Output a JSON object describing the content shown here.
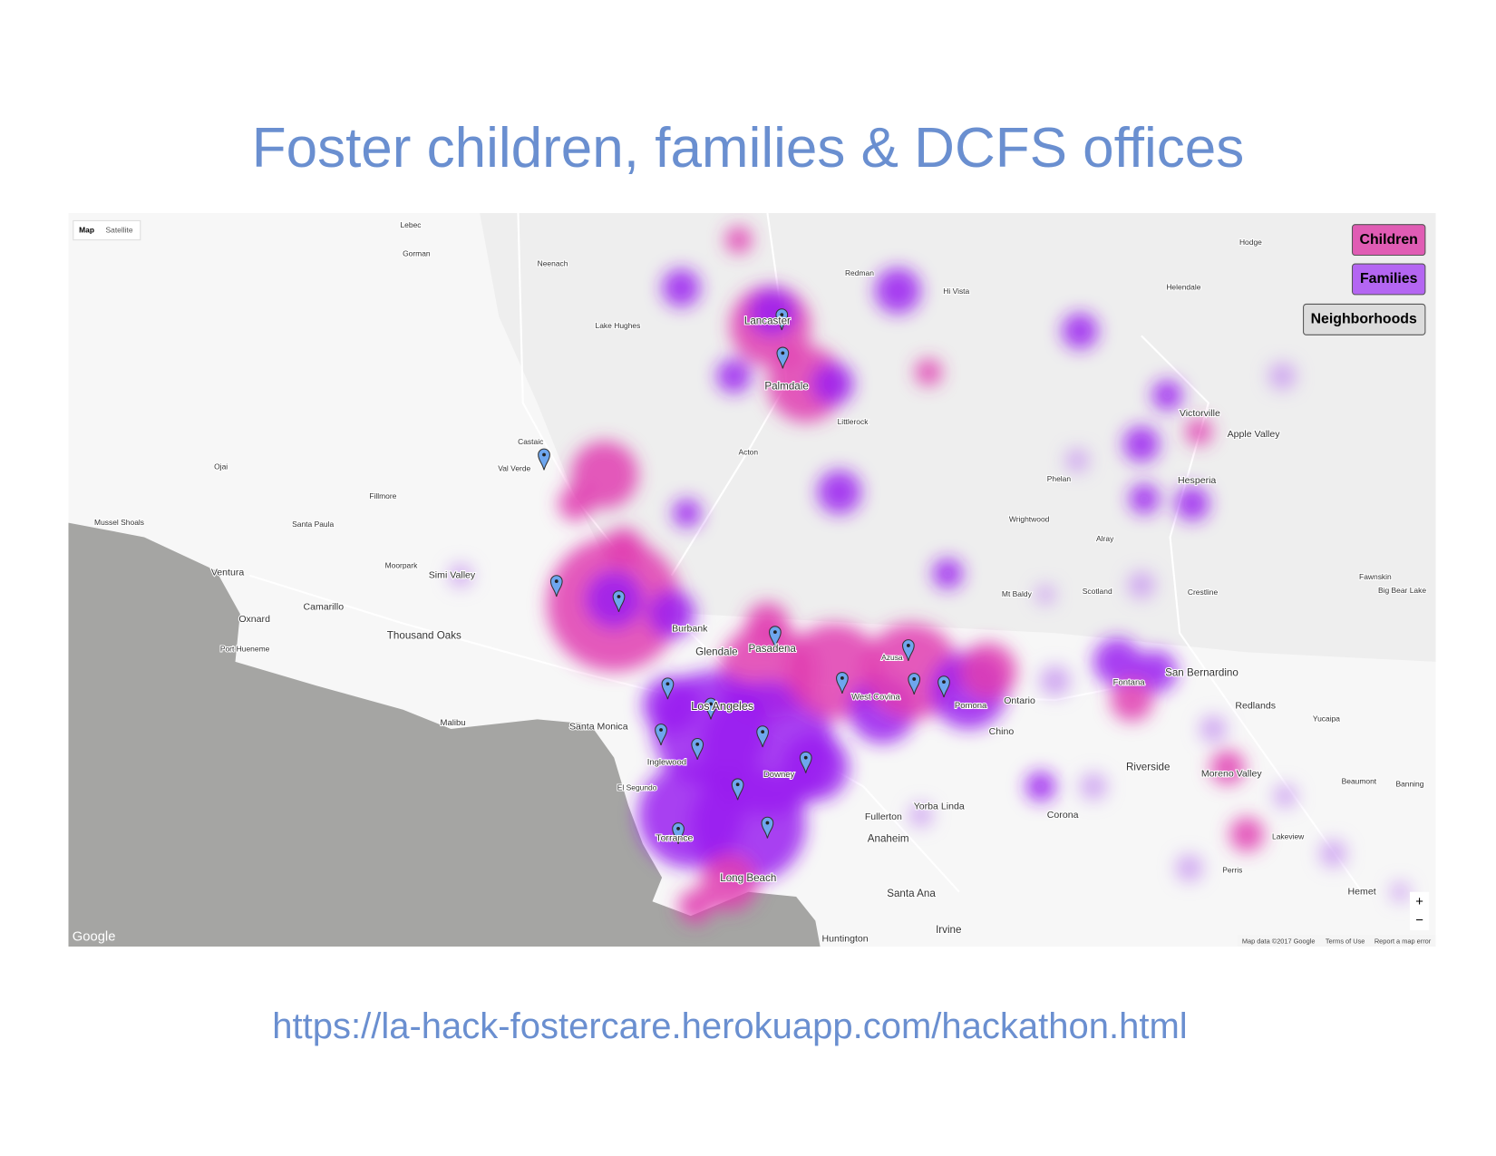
{
  "title": "Foster children, families & DCFS offices",
  "url": "https://la-hack-fostercare.herokuapp.com/hackathon.html",
  "map": {
    "type_controls": [
      "Map",
      "Satellite"
    ],
    "layer_buttons": [
      "Children",
      "Families",
      "Neighborhoods"
    ],
    "place_labels": [
      "Lancaster",
      "Palmdale",
      "Castaic",
      "Val Verde",
      "Simi Valley",
      "Thousand Oaks",
      "Oxnard",
      "Ventura",
      "Camarillo",
      "Burbank",
      "Glendale",
      "Pasadena",
      "Los Angeles",
      "Santa Monica",
      "Inglewood",
      "Downey",
      "Torrance",
      "Long Beach",
      "West Covina",
      "Pomona",
      "Ontario",
      "Chino",
      "Fontana",
      "San Bernardino",
      "Riverside",
      "Redlands",
      "Moreno Valley",
      "Corona",
      "Anaheim",
      "Fullerton",
      "Yorba Linda",
      "Santa Ana",
      "Irvine",
      "Huntington",
      "Victorville",
      "Hesperia",
      "Apple Valley",
      "Hemet",
      "Malibu",
      "Ojai",
      "Santa Paula",
      "Fillmore",
      "Moorpark",
      "Azusa",
      "Littlerock",
      "Acton",
      "Lake Hughes",
      "Hi Vista",
      "Redman",
      "Hodge",
      "Helendale",
      "Neenach",
      "Gorman",
      "Lebec",
      "Mussel Shoals",
      "Port Hueneme",
      "El Segundo",
      "Perris",
      "Lakeview",
      "Yucaipa",
      "Beaumont",
      "Banning",
      "Phelan",
      "Wrightwood",
      "Crestline",
      "Scotland",
      "Mt Baldy",
      "Alray",
      "Fawnskin",
      "Big Bear Lake"
    ],
    "logo": "Google",
    "attribution": [
      "Map data ©2017 Google",
      "Terms of Use",
      "Report a map error"
    ],
    "zoom_controls": [
      "+",
      "−"
    ]
  }
}
